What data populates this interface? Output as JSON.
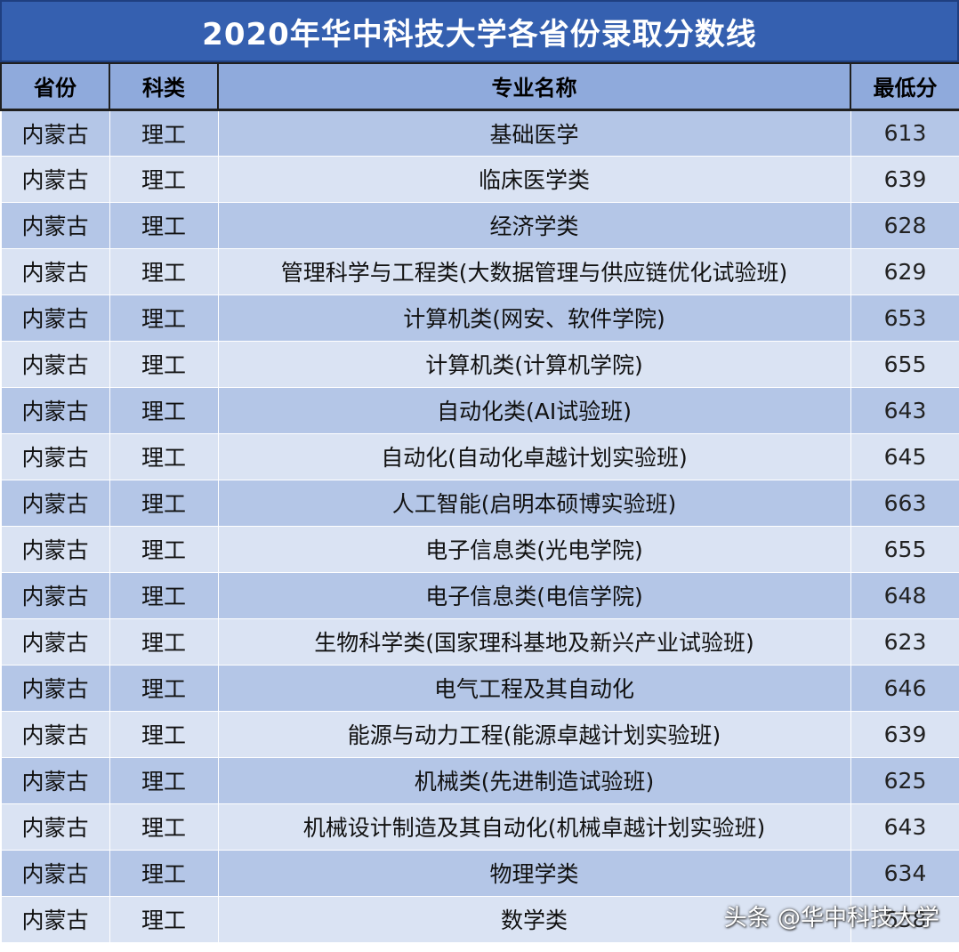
{
  "title": "2020年华中科技大学各省份录取分数线",
  "headers": {
    "province": "省份",
    "category": "科类",
    "major": "专业名称",
    "min_score": "最低分"
  },
  "rows": [
    {
      "province": "内蒙古",
      "category": "理工",
      "major": "基础医学",
      "score": "613"
    },
    {
      "province": "内蒙古",
      "category": "理工",
      "major": "临床医学类",
      "score": "639"
    },
    {
      "province": "内蒙古",
      "category": "理工",
      "major": "经济学类",
      "score": "628"
    },
    {
      "province": "内蒙古",
      "category": "理工",
      "major": "管理科学与工程类(大数据管理与供应链优化试验班)",
      "score": "629"
    },
    {
      "province": "内蒙古",
      "category": "理工",
      "major": "计算机类(网安、软件学院)",
      "score": "653"
    },
    {
      "province": "内蒙古",
      "category": "理工",
      "major": "计算机类(计算机学院)",
      "score": "655"
    },
    {
      "province": "内蒙古",
      "category": "理工",
      "major": "自动化类(AI试验班)",
      "score": "643"
    },
    {
      "province": "内蒙古",
      "category": "理工",
      "major": "自动化(自动化卓越计划实验班)",
      "score": "645"
    },
    {
      "province": "内蒙古",
      "category": "理工",
      "major": "人工智能(启明本硕博实验班)",
      "score": "663"
    },
    {
      "province": "内蒙古",
      "category": "理工",
      "major": "电子信息类(光电学院)",
      "score": "655"
    },
    {
      "province": "内蒙古",
      "category": "理工",
      "major": "电子信息类(电信学院)",
      "score": "648"
    },
    {
      "province": "内蒙古",
      "category": "理工",
      "major": "生物科学类(国家理科基地及新兴产业试验班)",
      "score": "623"
    },
    {
      "province": "内蒙古",
      "category": "理工",
      "major": "电气工程及其自动化",
      "score": "646"
    },
    {
      "province": "内蒙古",
      "category": "理工",
      "major": "能源与动力工程(能源卓越计划实验班)",
      "score": "639"
    },
    {
      "province": "内蒙古",
      "category": "理工",
      "major": "机械类(先进制造试验班)",
      "score": "625"
    },
    {
      "province": "内蒙古",
      "category": "理工",
      "major": "机械设计制造及其自动化(机械卓越计划实验班)",
      "score": "643"
    },
    {
      "province": "内蒙古",
      "category": "理工",
      "major": "物理学类",
      "score": "634"
    },
    {
      "province": "内蒙古",
      "category": "理工",
      "major": "数学类",
      "score": "638"
    }
  ],
  "watermark": "头条 @华中科技大学",
  "colors": {
    "title_bg": "#3560b0",
    "header_bg": "#8faadc",
    "row_odd": "#b4c6e7",
    "row_even": "#dae3f3"
  }
}
